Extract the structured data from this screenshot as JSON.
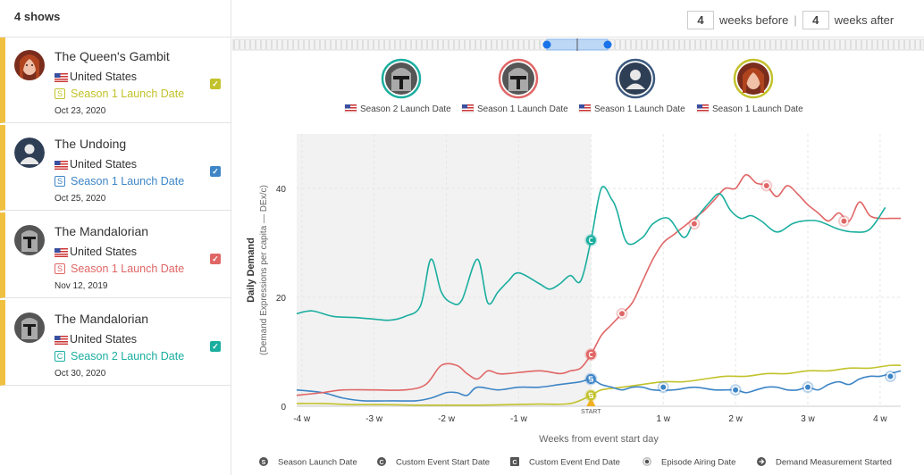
{
  "header": {
    "show_count": "4 shows"
  },
  "weeks": {
    "before_value": "4",
    "before_label": "weeks before",
    "separator": "|",
    "after_value": "4",
    "after_label": "weeks after"
  },
  "shows": [
    {
      "title": "The Queen's Gambit",
      "country": "United States",
      "badge": "S",
      "launch": "Season 1 Launch Date",
      "date": "Oct 23, 2020",
      "color": "#c2c22c",
      "avatar": "woman-portrait"
    },
    {
      "title": "The Undoing",
      "country": "United States",
      "badge": "S",
      "launch": "Season 1 Launch Date",
      "date": "Oct 25, 2020",
      "color": "#3d85c6",
      "avatar": "default-user"
    },
    {
      "title": "The Mandalorian",
      "country": "United States",
      "badge": "S",
      "launch": "Season 1 Launch Date",
      "date": "Nov 12, 2019",
      "color": "#e06666",
      "avatar": "mandalorian-helmet"
    },
    {
      "title": "The Mandalorian",
      "country": "United States",
      "badge": "C",
      "launch": "Season 2 Launch Date",
      "date": "Oct 30, 2020",
      "color": "#1aae9f",
      "avatar": "mandalorian-helmet"
    }
  ],
  "chart_legend_top": [
    {
      "label": "Season 2 Launch Date",
      "color": "#1aae9f"
    },
    {
      "label": "Season 1 Launch Date",
      "color": "#e06666"
    },
    {
      "label": "Season 1 Launch Date",
      "color": "#3d5a80"
    },
    {
      "label": "Season 1 Launch Date",
      "color": "#c2c22c"
    }
  ],
  "chart_data": {
    "type": "line",
    "xlabel": "Weeks from event start day",
    "ylabel": "Daily Demand",
    "ylabel_sub": "(Demand Expressions per capita — DEx/c)",
    "xlim": [
      -28.5,
      30
    ],
    "ylim": [
      0,
      50
    ],
    "x_ticks": [
      -28,
      -21,
      -14,
      -7,
      0,
      7,
      14,
      21,
      28
    ],
    "x_tick_labels": [
      "-4 w",
      "-3 w",
      "-2 w",
      "-1 w",
      "",
      "1 w",
      "2 w",
      "3 w",
      "4 w"
    ],
    "y_ticks": [
      0,
      20,
      40
    ],
    "y_tick_labels": [
      "0",
      "20",
      "40"
    ],
    "shaded_range": [
      -28.5,
      0
    ],
    "start_label": "START",
    "series": [
      {
        "name": "The Mandalorian — Season 2 Launch Date",
        "color": "#1aae9f",
        "x": [
          -28.5,
          -27,
          -25,
          -23,
          -21,
          -19.5,
          -18,
          -16.5,
          -15.5,
          -14.5,
          -13.5,
          -12.5,
          -11,
          -10,
          -9,
          -8,
          -7,
          -5,
          -4,
          -3,
          -2,
          -1,
          0,
          1,
          2,
          2.5,
          3.5,
          5,
          6,
          7.5,
          9,
          10,
          11.5,
          12.5,
          13.5,
          14.5,
          15.5,
          16.5,
          18,
          19.5,
          20.5,
          22,
          24,
          25.5,
          27,
          28.5
        ],
        "y": [
          17,
          17.5,
          16.5,
          16.3,
          16,
          15.8,
          16.5,
          18.5,
          27,
          21,
          19,
          19.5,
          27,
          19,
          21,
          23,
          24.5,
          22.5,
          21.5,
          22.5,
          24,
          23,
          30.5,
          40,
          38,
          36,
          30,
          31,
          33.5,
          34.5,
          31,
          34,
          37.5,
          39,
          36,
          34.5,
          35,
          34,
          32,
          33.5,
          34,
          34,
          32.5,
          32,
          32.5,
          36.5
        ]
      },
      {
        "name": "The Mandalorian — Season 1 Launch Date",
        "color": "#e06666",
        "x": [
          -28.5,
          -26,
          -24,
          -21,
          -18,
          -16,
          -14.5,
          -13,
          -12,
          -11,
          -10,
          -9,
          -8,
          -5,
          -3,
          -2,
          -1,
          0,
          1,
          2,
          3,
          4,
          5,
          6,
          7,
          8,
          9,
          10,
          11,
          12,
          13,
          14,
          15,
          16,
          17,
          18,
          19,
          20,
          21,
          22,
          23,
          24,
          25,
          26,
          27,
          28,
          29,
          30
        ],
        "y": [
          2,
          2.5,
          3,
          3,
          3,
          4,
          7.5,
          7.5,
          6,
          5,
          6.5,
          6,
          6,
          6.5,
          6,
          6.5,
          7,
          9.5,
          13,
          15,
          17,
          19,
          23,
          27,
          30,
          31.5,
          33,
          34.5,
          36,
          38,
          40,
          40,
          42.5,
          41,
          40.5,
          38.5,
          40.5,
          39,
          37,
          35.5,
          34,
          35.5,
          34,
          37.5,
          35,
          34.5,
          34.5,
          34.5
        ]
      },
      {
        "name": "The Undoing — Season 1 Launch Date",
        "color": "#3d85c6",
        "x": [
          -28.5,
          -26,
          -24,
          -22,
          -19,
          -17,
          -15.5,
          -14,
          -13,
          -12,
          -11,
          -9,
          -7,
          -5,
          -3,
          -1,
          0,
          1,
          2,
          3,
          4,
          5,
          6,
          8,
          10,
          12,
          14,
          15,
          16,
          17,
          18,
          19,
          20,
          21,
          22,
          23,
          24,
          25,
          26,
          27,
          28,
          29,
          30
        ],
        "y": [
          3,
          2.5,
          1.5,
          1,
          1,
          1,
          1.5,
          2.5,
          2.5,
          2,
          3.5,
          3,
          3.5,
          3.5,
          4,
          4.5,
          5,
          4,
          3.5,
          3,
          3.5,
          3.5,
          3,
          3,
          3.5,
          3,
          3,
          2.5,
          3,
          3.5,
          3.5,
          3,
          3,
          3.5,
          3,
          4,
          4.5,
          4,
          5,
          5.5,
          5.5,
          6,
          6.5
        ]
      },
      {
        "name": "The Queen's Gambit — Season 1 Launch Date",
        "color": "#c2c22c",
        "x": [
          -28.5,
          -26,
          -23,
          -20,
          -17,
          -14,
          -11,
          -8,
          -5,
          -2,
          0,
          1,
          3,
          5,
          7,
          9,
          11,
          13,
          15,
          17,
          19,
          21,
          23,
          25,
          27,
          29,
          30
        ],
        "y": [
          0.5,
          0.5,
          0.3,
          0.3,
          0.2,
          0.2,
          0.2,
          0.3,
          0.4,
          0.5,
          2,
          3,
          3.5,
          4,
          4.5,
          4.5,
          5,
          5.5,
          5.5,
          6,
          6,
          6.5,
          6.5,
          7,
          7,
          7.5,
          7.5
        ]
      }
    ],
    "markers": [
      {
        "x": 0,
        "y": 30.5,
        "color": "#1aae9f",
        "glyph": "c"
      },
      {
        "x": 0,
        "y": 9.5,
        "color": "#e06666",
        "glyph": "c"
      },
      {
        "x": 0,
        "y": 5,
        "color": "#3d85c6",
        "glyph": "s"
      },
      {
        "x": 0,
        "y": 2,
        "color": "#c2c22c",
        "glyph": "s"
      },
      {
        "x": 3,
        "y": 17,
        "color": "#e06666",
        "glyph": "dot"
      },
      {
        "x": 10,
        "y": 33.5,
        "color": "#e06666",
        "glyph": "dot"
      },
      {
        "x": 17,
        "y": 40.5,
        "color": "#e06666",
        "glyph": "dot"
      },
      {
        "x": 24.5,
        "y": 34,
        "color": "#e06666",
        "glyph": "dot"
      },
      {
        "x": 7,
        "y": 3.5,
        "color": "#3d85c6",
        "glyph": "dot"
      },
      {
        "x": 14,
        "y": 3,
        "color": "#3d85c6",
        "glyph": "dot"
      },
      {
        "x": 21,
        "y": 3.5,
        "color": "#3d85c6",
        "glyph": "dot"
      },
      {
        "x": 29,
        "y": 5.5,
        "color": "#3d85c6",
        "glyph": "dot"
      }
    ]
  },
  "bottom_legend": [
    {
      "glyph": "S",
      "label": "Season Launch Date"
    },
    {
      "glyph": "C",
      "label": "Custom Event Start Date"
    },
    {
      "glyph": "C",
      "label": "Custom Event End Date"
    },
    {
      "glyph": "dot",
      "label": "Episode Airing Date"
    },
    {
      "glyph": "arrow",
      "label": "Demand Measurement Started"
    }
  ]
}
